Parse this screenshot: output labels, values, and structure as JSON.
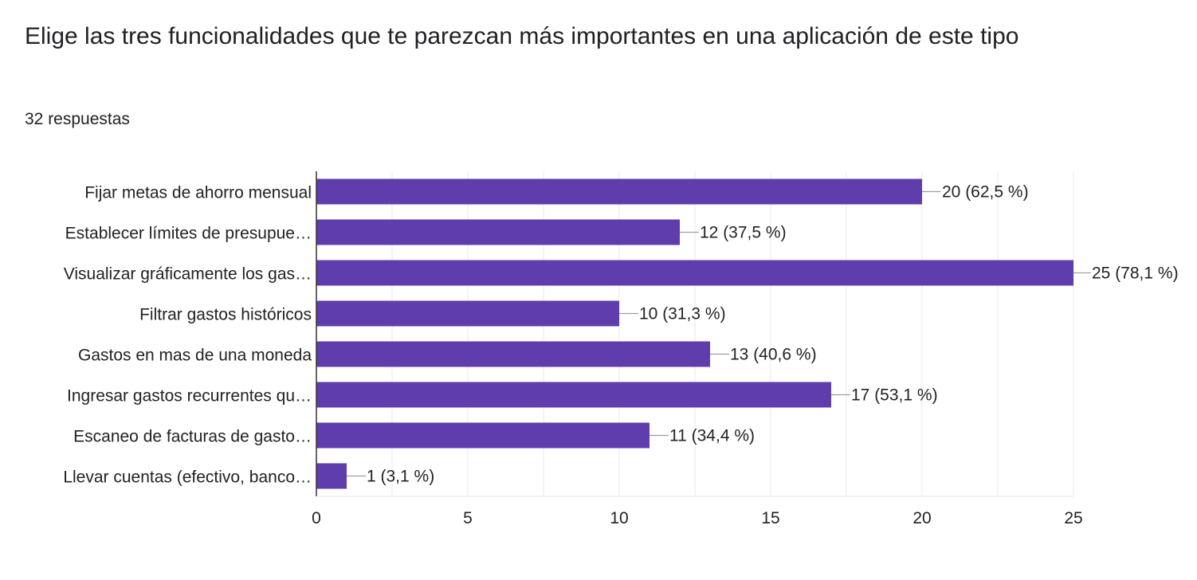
{
  "question": {
    "title": "Elige las tres funcionalidades que te parezcan más importantes en una aplicación de este tipo",
    "response_count": "32 respuestas"
  },
  "colors": {
    "bar": "#5f3dad",
    "grid": "#e8e8e8",
    "axis": "#333333",
    "leader": "#9e9e9e",
    "text": "#222222"
  },
  "chart_data": {
    "type": "bar",
    "orientation": "horizontal",
    "categories": [
      "Fijar metas de ahorro mensual",
      "Establecer límites de presupue…",
      "Visualizar gráficamente los gas…",
      "Filtrar gastos históricos",
      "Gastos en mas de una moneda",
      "Ingresar gastos recurrentes qu…",
      "Escaneo de facturas de gasto…",
      "Llevar cuentas (efectivo, banco…"
    ],
    "values": [
      20,
      12,
      25,
      10,
      13,
      17,
      11,
      1
    ],
    "data_labels": [
      "20 (62,5 %)",
      "12 (37,5 %)",
      "25 (78,1 %)",
      "10 (31,3 %)",
      "13 (40,6 %)",
      "17 (53,1 %)",
      "11 (34,4 %)",
      "1 (3,1 %)"
    ],
    "xlim": [
      0,
      25
    ],
    "x_ticks": [
      0,
      5,
      10,
      15,
      20,
      25
    ],
    "x_tick_labels": [
      "0",
      "5",
      "10",
      "15",
      "20",
      "25"
    ],
    "grid": true,
    "legend": "none"
  }
}
